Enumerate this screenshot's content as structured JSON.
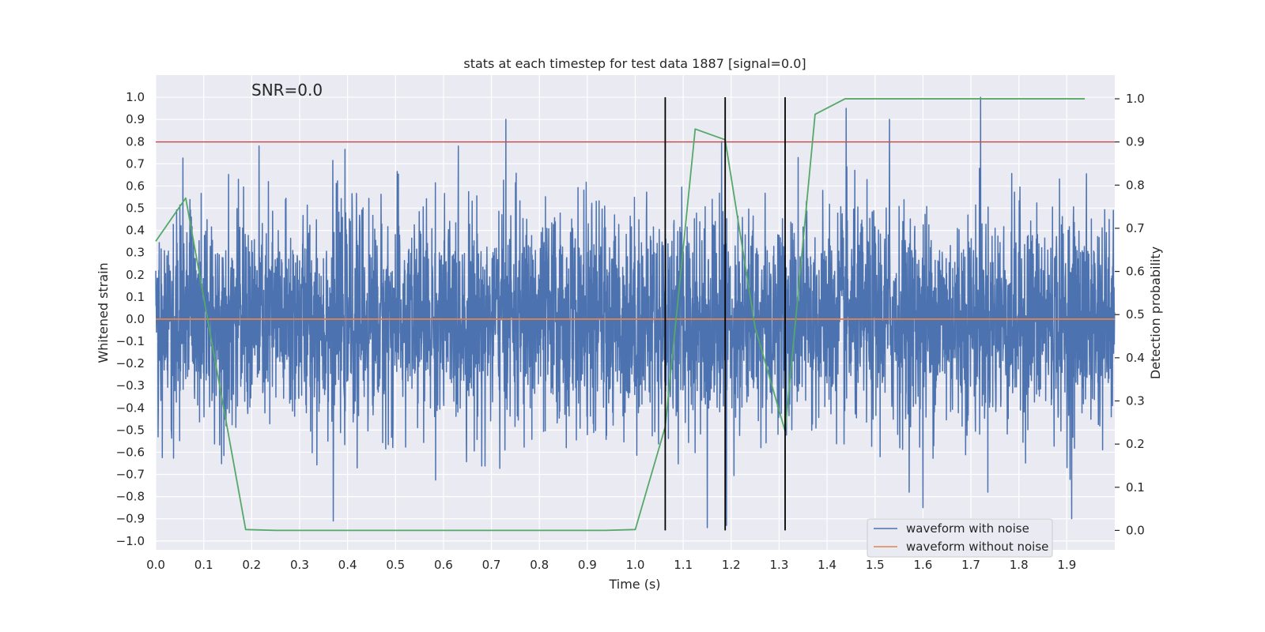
{
  "chart_data": {
    "type": "line",
    "title": "stats at each timestep for test data 1887 [signal=0.0]",
    "annotation": "SNR=0.0",
    "xlabel": "Time (s)",
    "ylabel_left": "Whitened strain",
    "ylabel_right": "Detection probability",
    "xlim": [
      0.0,
      2.0
    ],
    "ylim_left": [
      -1.04,
      1.1
    ],
    "ylim_right": [
      -0.045,
      1.055
    ],
    "x_ticks": [
      "0.0",
      "0.1",
      "0.2",
      "0.3",
      "0.4",
      "0.5",
      "0.6",
      "0.7",
      "0.8",
      "0.9",
      "1.0",
      "1.1",
      "1.2",
      "1.3",
      "1.4",
      "1.5",
      "1.6",
      "1.7",
      "1.8",
      "1.9"
    ],
    "y_ticks_left": [
      "1.0",
      "0.9",
      "0.8",
      "0.7",
      "0.6",
      "0.5",
      "0.4",
      "0.3",
      "0.2",
      "0.1",
      "0.0",
      "−0.1",
      "−0.2",
      "−0.3",
      "−0.4",
      "−0.5",
      "−0.6",
      "−0.7",
      "−0.8",
      "−0.9",
      "−1.0"
    ],
    "y_ticks_right": [
      "1.0",
      "0.9",
      "0.8",
      "0.7",
      "0.6",
      "0.5",
      "0.4",
      "0.3",
      "0.2",
      "0.1",
      "0.0"
    ],
    "grid": true,
    "legend_position": "bottom-right",
    "colors": {
      "background": "#eaeaf2",
      "grid": "#ffffff",
      "noisy": "#4c72b0",
      "clean": "#dd8452",
      "probability": "#55a868",
      "threshold": "#c44e52",
      "detection_lines": "#000000"
    },
    "series": [
      {
        "name": "waveform with noise",
        "axis": "left",
        "description_range": [
          -0.95,
          1.0
        ],
        "x_range": [
          0.0,
          2.0
        ],
        "peaks": [
          {
            "x": 0.73,
            "y": 0.9
          },
          {
            "x": 1.44,
            "y": 0.95
          },
          {
            "x": 1.72,
            "y": 1.0
          },
          {
            "x": 1.53,
            "y": 0.9
          },
          {
            "x": 1.18,
            "y": 0.8
          },
          {
            "x": 1.6,
            "y": 0.82
          },
          {
            "x": 0.37,
            "y": -0.91
          },
          {
            "x": 1.15,
            "y": -0.94
          },
          {
            "x": 1.19,
            "y": -0.93
          },
          {
            "x": 1.6,
            "y": -0.85
          },
          {
            "x": 1.91,
            "y": -0.9
          }
        ]
      },
      {
        "name": "waveform without noise",
        "axis": "left",
        "x": [
          0.0,
          2.0
        ],
        "y": [
          0.0,
          0.0
        ]
      },
      {
        "name": "detection probability",
        "axis": "right",
        "x": [
          0.0,
          0.0625,
          0.1875,
          0.25,
          0.3125,
          0.375,
          0.4375,
          0.5,
          0.5625,
          0.625,
          0.6875,
          0.75,
          0.8125,
          0.875,
          0.9375,
          1.0,
          1.0625,
          1.125,
          1.1875,
          1.25,
          1.3125,
          1.375,
          1.4375,
          1.5,
          1.5625,
          1.625,
          1.6875,
          1.75,
          1.8125,
          1.875,
          1.9375
        ],
        "y": [
          0.67,
          0.77,
          0.002,
          0.0,
          0.0,
          0.0,
          0.0,
          0.0,
          0.0,
          0.0,
          0.0,
          0.0,
          0.0,
          0.0,
          0.0,
          0.002,
          0.24,
          0.93,
          0.905,
          0.47,
          0.23,
          0.964,
          1.0,
          1.0,
          1.0,
          1.0,
          1.0,
          1.0,
          1.0,
          1.0,
          1.0
        ]
      }
    ],
    "threshold": {
      "axis": "right",
      "y": 0.9
    },
    "detection_lines": {
      "axis": "left",
      "x": [
        1.0625,
        1.1875,
        1.3125
      ],
      "ymin": 0.0,
      "ymax": 1.0
    },
    "legend": [
      "waveform with noise",
      "waveform without noise"
    ]
  }
}
